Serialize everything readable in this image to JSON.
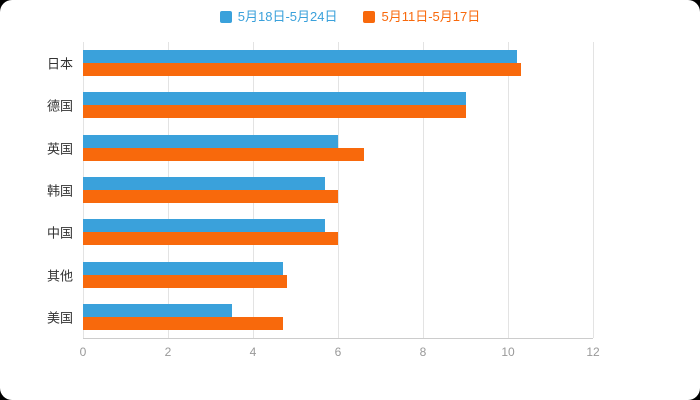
{
  "chart_data": {
    "type": "bar",
    "orientation": "horizontal",
    "title": "",
    "xlabel": "",
    "ylabel": "",
    "categories": [
      "日本",
      "德国",
      "英国",
      "韩国",
      "中国",
      "其他",
      "美国"
    ],
    "series": [
      {
        "name": "5月18日-5月24日",
        "color": "#3aa1db",
        "values": [
          10.2,
          9.0,
          6.0,
          5.7,
          5.7,
          4.7,
          3.5
        ]
      },
      {
        "name": "5月11日-5月17日",
        "color": "#f8690c",
        "values": [
          10.3,
          9.0,
          6.6,
          6.0,
          6.0,
          4.8,
          4.7
        ]
      }
    ],
    "xlim": [
      0,
      12
    ],
    "xticks": [
      0,
      2,
      4,
      6,
      8,
      10,
      12
    ],
    "grid": true,
    "legend_position": "top"
  },
  "colors": {
    "background": "#000000",
    "card": "#ffffff",
    "gridline": "#e3e3e3",
    "axis_line": "#cccccc",
    "tick_label": "#999999",
    "category_label": "#333333"
  }
}
